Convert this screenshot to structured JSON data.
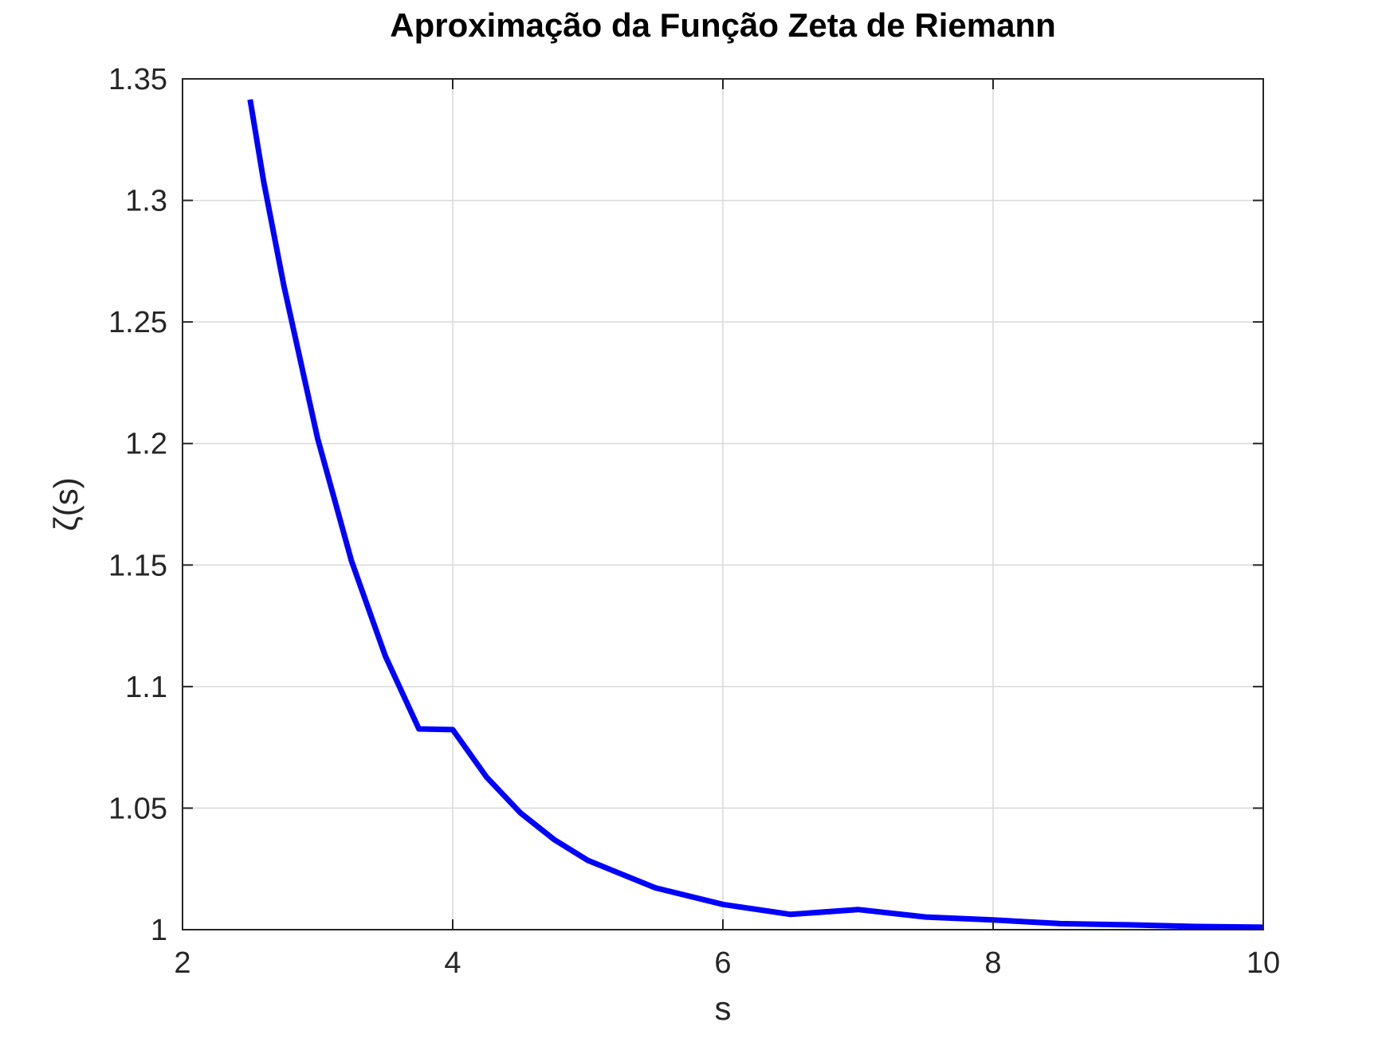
{
  "chart_data": {
    "type": "line",
    "title": "Aproximação da Função Zeta de Riemann",
    "xlabel": "s",
    "ylabel": "ζ(s)",
    "xlim": [
      2,
      10
    ],
    "ylim": [
      1,
      1.35
    ],
    "xticks": [
      2,
      4,
      6,
      8,
      10
    ],
    "xtick_labels": [
      "2",
      "4",
      "6",
      "8",
      "10"
    ],
    "yticks": [
      1,
      1.05,
      1.1,
      1.15,
      1.2,
      1.25,
      1.3,
      1.35
    ],
    "ytick_labels": [
      "1",
      "1.05",
      "1.1",
      "1.15",
      "1.2",
      "1.25",
      "1.3",
      "1.35"
    ],
    "grid": true,
    "legend": "none",
    "series": [
      {
        "color": "#0000ff",
        "x": [
          2.5,
          2.6,
          2.75,
          3.0,
          3.25,
          3.5,
          3.75,
          4.0,
          4.25,
          4.5,
          4.75,
          5.0,
          5.5,
          6.0,
          6.5,
          7.0,
          7.5,
          8.0,
          8.5,
          9.0,
          9.5,
          10.0
        ],
        "y": [
          1.3415,
          1.308,
          1.265,
          1.2021,
          1.1518,
          1.1127,
          1.0826,
          1.0823,
          1.0628,
          1.0481,
          1.0371,
          1.0285,
          1.0172,
          1.0104,
          1.0063,
          1.0083,
          1.0052,
          1.004,
          1.0025,
          1.002,
          1.0013,
          1.001
        ]
      }
    ]
  }
}
